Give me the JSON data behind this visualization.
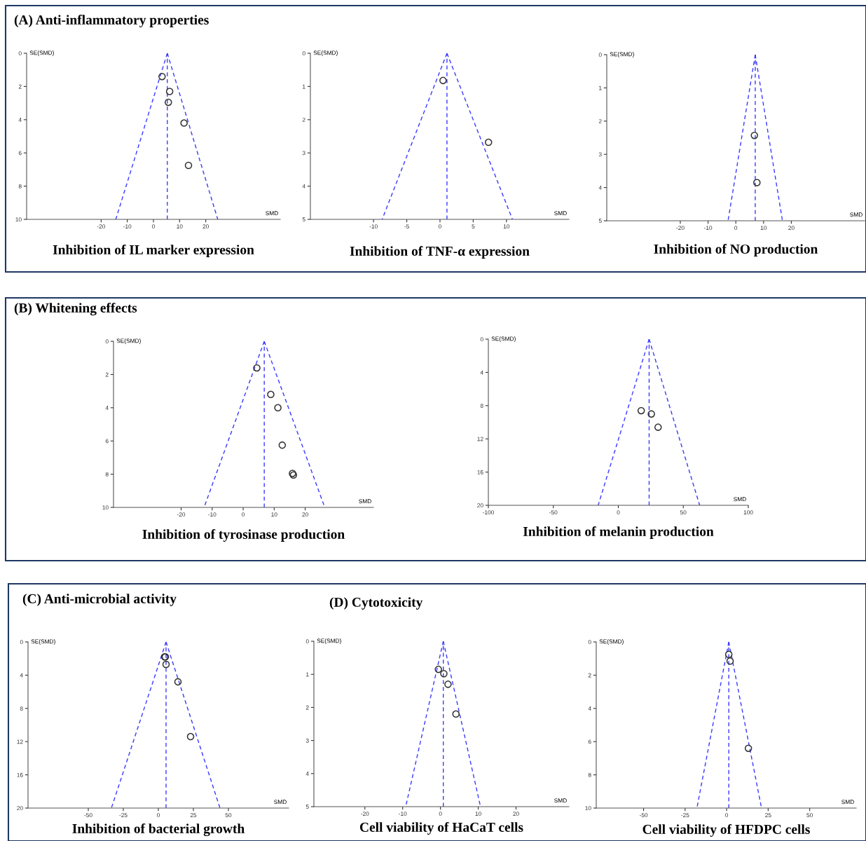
{
  "chart_data": [
    {
      "type": "scatter",
      "title": "(A) Anti-inflammatory properties",
      "annotations": [
        "Inhibition of IL marker expression"
      ],
      "xlabel": "SMD",
      "ylabel": "SE(SMD)",
      "xlim": [
        -48.5,
        48.5
      ],
      "xticks": [
        -20,
        -10,
        0,
        10,
        20
      ],
      "ylim": [
        10,
        0
      ],
      "yticks": [
        0,
        2,
        4,
        6,
        8,
        10
      ],
      "grid": false,
      "ref_lines": [
        {
          "axis": "x",
          "value": 5.3,
          "color": "#3a3aff",
          "line_style": "dashed"
        }
      ],
      "series": [
        {
          "type": "scatter",
          "color": "#333333",
          "marker": "circle",
          "x": [
            3.3,
            6.2,
            5.7,
            11.7,
            13.4
          ],
          "values": [
            1.4,
            2.3,
            2.95,
            4.2,
            6.75
          ]
        },
        {
          "type": "line",
          "color": "#3a3aff",
          "line_style": "dashed",
          "x": [
            5.3,
            -14.4
          ],
          "values": [
            0,
            10
          ]
        },
        {
          "type": "line",
          "color": "#3a3aff",
          "line_style": "dashed",
          "x": [
            5.3,
            24.6
          ],
          "values": [
            0,
            10
          ]
        }
      ]
    },
    {
      "type": "scatter",
      "annotations": [
        "Inhibition of TNF-α expression"
      ],
      "xlabel": "SMD",
      "ylabel": "SE(SMD)",
      "xlim": [
        -19.5,
        19.4
      ],
      "xticks": [
        -10,
        -5,
        0,
        5,
        10
      ],
      "ylim": [
        5,
        0
      ],
      "yticks": [
        0,
        1,
        2,
        3,
        4,
        5
      ],
      "grid": false,
      "ref_lines": [
        {
          "axis": "x",
          "value": 1.05,
          "color": "#3a3aff",
          "line_style": "dashed"
        }
      ],
      "series": [
        {
          "type": "scatter",
          "color": "#333333",
          "marker": "circle",
          "x": [
            0.46,
            7.3
          ],
          "values": [
            0.82,
            2.68
          ]
        },
        {
          "type": "line",
          "color": "#3a3aff",
          "line_style": "dashed",
          "x": [
            1.05,
            -8.7
          ],
          "values": [
            0,
            5
          ]
        },
        {
          "type": "line",
          "color": "#3a3aff",
          "line_style": "dashed",
          "x": [
            1.05,
            10.9
          ],
          "values": [
            0,
            5
          ]
        }
      ]
    },
    {
      "type": "scatter",
      "annotations": [
        "Inhibition of NO production"
      ],
      "xlabel": "SMD",
      "ylabel": "SE(SMD)",
      "xlim": [
        -46.5,
        46.4
      ],
      "xticks": [
        -20,
        -10,
        0,
        10,
        20
      ],
      "ylim": [
        5,
        0
      ],
      "yticks": [
        0,
        1,
        2,
        3,
        4,
        5
      ],
      "grid": false,
      "ref_lines": [
        {
          "axis": "x",
          "value": 7.0,
          "color": "#3a3aff",
          "line_style": "dashed"
        }
      ],
      "series": [
        {
          "type": "scatter",
          "color": "#333333",
          "marker": "circle",
          "x": [
            6.7,
            7.6
          ],
          "values": [
            2.43,
            3.85
          ]
        },
        {
          "type": "line",
          "color": "#3a3aff",
          "line_style": "dashed",
          "x": [
            7.0,
            -2.8
          ],
          "values": [
            0,
            5
          ]
        },
        {
          "type": "line",
          "color": "#3a3aff",
          "line_style": "dashed",
          "x": [
            7.0,
            16.8
          ],
          "values": [
            0,
            5
          ]
        }
      ]
    },
    {
      "type": "scatter",
      "title": "(B) Whitening effects",
      "annotations": [
        "Inhibition of tyrosinase production"
      ],
      "xlabel": "SMD",
      "ylabel": "SE(SMD)",
      "xlim": [
        -41.8,
        42
      ],
      "xticks": [
        -20,
        -10,
        0,
        10,
        20
      ],
      "ylim": [
        10,
        0
      ],
      "yticks": [
        0,
        2,
        4,
        6,
        8,
        10
      ],
      "grid": false,
      "ref_lines": [
        {
          "axis": "x",
          "value": 6.8,
          "color": "#3a3aff",
          "line_style": "dashed"
        }
      ],
      "series": [
        {
          "type": "scatter",
          "color": "#333333",
          "marker": "circle",
          "x": [
            4.4,
            8.9,
            11.2,
            12.6,
            15.9,
            16.2
          ],
          "values": [
            1.6,
            3.2,
            4.0,
            6.25,
            7.95,
            8.05
          ]
        },
        {
          "type": "line",
          "color": "#3a3aff",
          "line_style": "dashed",
          "x": [
            6.8,
            -12.6
          ],
          "values": [
            0,
            10
          ]
        },
        {
          "type": "line",
          "color": "#3a3aff",
          "line_style": "dashed",
          "x": [
            6.8,
            26.3
          ],
          "values": [
            0,
            10
          ]
        }
      ]
    },
    {
      "type": "scatter",
      "annotations": [
        "Inhibition of melanin production"
      ],
      "xlabel": "SMD",
      "ylabel": "SE(SMD)",
      "xlim": [
        -100,
        100
      ],
      "xticks": [
        -100,
        -50,
        0,
        50,
        100
      ],
      "ylim": [
        20,
        0
      ],
      "yticks": [
        0,
        4,
        8,
        12,
        16,
        20
      ],
      "grid": false,
      "ref_lines": [
        {
          "axis": "x",
          "value": 23.7,
          "color": "#3a3aff",
          "line_style": "dashed"
        }
      ],
      "series": [
        {
          "type": "scatter",
          "color": "#333333",
          "marker": "circle",
          "x": [
            17.6,
            25.4,
            30.6
          ],
          "values": [
            8.6,
            9.0,
            10.6
          ]
        },
        {
          "type": "line",
          "color": "#3a3aff",
          "line_style": "dashed",
          "x": [
            23.7,
            -15.5
          ],
          "values": [
            0,
            20
          ]
        },
        {
          "type": "line",
          "color": "#3a3aff",
          "line_style": "dashed",
          "x": [
            23.7,
            62.6
          ],
          "values": [
            0,
            20
          ]
        }
      ]
    },
    {
      "type": "scatter",
      "title": "(C) Anti-microbial activity",
      "annotations": [
        "Inhibition of bacterial growth"
      ],
      "xlabel": "SMD",
      "ylabel": "SE(SMD)",
      "xlim": [
        -93,
        93
      ],
      "xticks": [
        -50,
        -25,
        0,
        25,
        50
      ],
      "ylim": [
        20,
        0
      ],
      "yticks": [
        0,
        4,
        8,
        12,
        16,
        20
      ],
      "grid": false,
      "ref_lines": [
        {
          "axis": "x",
          "value": 5.5,
          "color": "#3a3aff",
          "line_style": "dashed"
        }
      ],
      "series": [
        {
          "type": "scatter",
          "color": "#333333",
          "marker": "circle",
          "x": [
            4.5,
            5.0,
            5.5,
            14,
            23
          ],
          "values": [
            1.8,
            1.8,
            2.7,
            4.8,
            11.4
          ]
        },
        {
          "type": "line",
          "color": "#3a3aff",
          "line_style": "dashed",
          "x": [
            5.5,
            -33.5
          ],
          "values": [
            0,
            20
          ]
        },
        {
          "type": "line",
          "color": "#3a3aff",
          "line_style": "dashed",
          "x": [
            5.5,
            44
          ],
          "values": [
            0,
            20
          ]
        }
      ]
    },
    {
      "type": "scatter",
      "title": "(D) Cytotoxicity",
      "annotations": [
        "Cell viability of HaCaT cells"
      ],
      "xlabel": "SMD",
      "ylabel": "SE(SMD)",
      "xlim": [
        -33.5,
        34
      ],
      "xticks": [
        -20,
        -10,
        0,
        10,
        20
      ],
      "ylim": [
        5,
        0
      ],
      "yticks": [
        0,
        1,
        2,
        3,
        4,
        5
      ],
      "grid": false,
      "ref_lines": [
        {
          "axis": "x",
          "value": 0.75,
          "color": "#3a3aff",
          "line_style": "dashed"
        }
      ],
      "series": [
        {
          "type": "scatter",
          "color": "#333333",
          "marker": "circle",
          "x": [
            -0.55,
            0.9,
            2.0,
            4.1
          ],
          "values": [
            0.85,
            0.98,
            1.3,
            2.2
          ]
        },
        {
          "type": "line",
          "color": "#3a3aff",
          "line_style": "dashed",
          "x": [
            0.75,
            -9.2
          ],
          "values": [
            0,
            5
          ]
        },
        {
          "type": "line",
          "color": "#3a3aff",
          "line_style": "dashed",
          "x": [
            0.75,
            10.6
          ],
          "values": [
            0,
            5
          ]
        }
      ]
    },
    {
      "type": "scatter",
      "annotations": [
        "Cell viability of HFDPC cells"
      ],
      "xlabel": "SMD",
      "ylabel": "SE(SMD)",
      "xlim": [
        -78.5,
        78
      ],
      "xticks": [
        -50,
        -25,
        0,
        25,
        50
      ],
      "ylim": [
        10,
        0
      ],
      "yticks": [
        0,
        2,
        4,
        6,
        8,
        10
      ],
      "grid": false,
      "ref_lines": [
        {
          "axis": "x",
          "value": 1.3,
          "color": "#3a3aff",
          "line_style": "dashed"
        }
      ],
      "series": [
        {
          "type": "scatter",
          "color": "#333333",
          "marker": "circle",
          "x": [
            1.3,
            2.1,
            13.1
          ],
          "values": [
            0.75,
            1.15,
            6.4
          ]
        },
        {
          "type": "line",
          "color": "#3a3aff",
          "line_style": "dashed",
          "x": [
            1.3,
            -17.9
          ],
          "values": [
            0,
            10
          ]
        },
        {
          "type": "line",
          "color": "#3a3aff",
          "line_style": "dashed",
          "x": [
            1.3,
            21.0
          ],
          "values": [
            0,
            10
          ]
        }
      ]
    }
  ]
}
